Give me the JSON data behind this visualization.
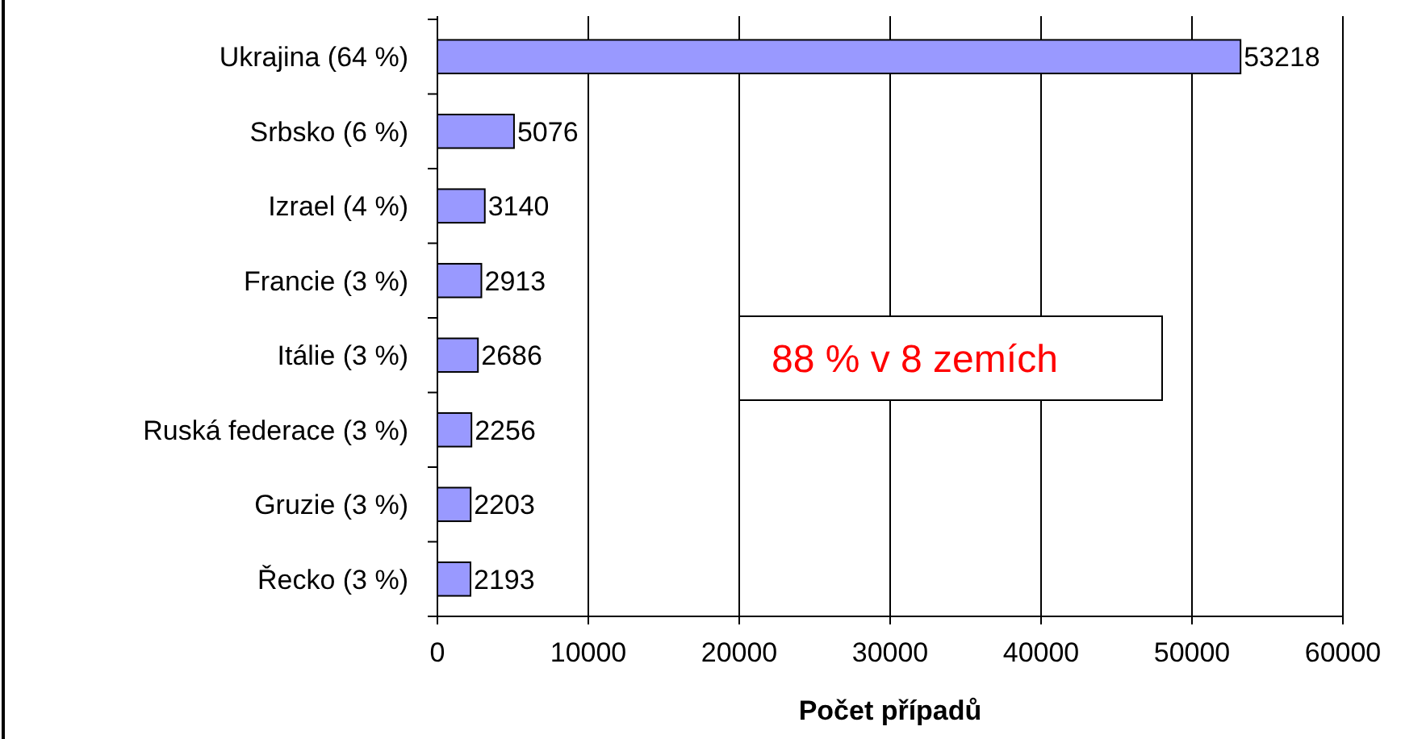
{
  "chart_data": {
    "type": "bar",
    "orientation": "horizontal",
    "xlabel": "Počet případů",
    "categories": [
      "Ukrajina (64 %)",
      "Srbsko (6 %)",
      "Izrael (4 %)",
      "Francie (3 %)",
      "Itálie (3 %)",
      "Ruská federace (3 %)",
      "Gruzie (3 %)",
      "Řecko (3 %)"
    ],
    "values": [
      53218,
      5076,
      3140,
      2913,
      2686,
      2256,
      2203,
      2193
    ],
    "color": "#9999ff",
    "xlim": [
      0,
      60000
    ],
    "xticks": [
      0,
      10000,
      20000,
      30000,
      40000,
      50000,
      60000
    ],
    "grid": "x",
    "data_labels": true,
    "annotations": [
      "88 % v 8 zemích"
    ]
  }
}
